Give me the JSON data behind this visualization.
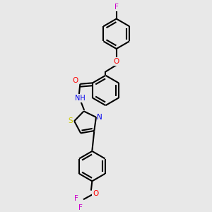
{
  "background_color": "#e8e8e8",
  "bond_color": "#000000",
  "bond_width": 1.5,
  "atom_colors": {
    "F": "#cc00cc",
    "O": "#ff0000",
    "N": "#0000ee",
    "S": "#cccc00",
    "C": "#000000",
    "H": "#008888"
  },
  "figsize": [
    3.0,
    3.0
  ],
  "dpi": 100,
  "xlim": [
    0,
    10
  ],
  "ylim": [
    0,
    10
  ]
}
